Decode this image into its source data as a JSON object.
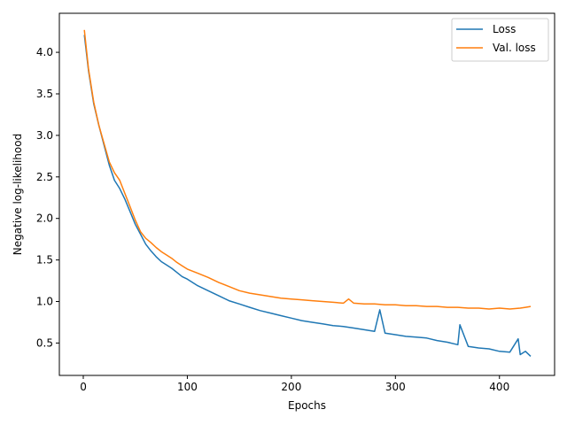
{
  "chart_data": {
    "type": "line",
    "title": "",
    "xlabel": "Epochs",
    "ylabel": "Negative log-likelihood",
    "xlim": [
      -23,
      453
    ],
    "ylim": [
      0.11,
      4.47
    ],
    "xticks": [
      0,
      100,
      200,
      300,
      400
    ],
    "xtick_labels": [
      "0",
      "100",
      "200",
      "300",
      "400"
    ],
    "yticks": [
      0.5,
      1.0,
      1.5,
      2.0,
      2.5,
      3.0,
      3.5,
      4.0
    ],
    "ytick_labels": [
      "0.5",
      "1.0",
      "1.5",
      "2.0",
      "2.5",
      "3.0",
      "3.5",
      "4.0"
    ],
    "grid": false,
    "legend_position": "top-right",
    "series": [
      {
        "name": "Loss",
        "color": "#1f77b4",
        "x": [
          1,
          5,
          10,
          15,
          20,
          25,
          30,
          35,
          40,
          45,
          50,
          55,
          60,
          65,
          70,
          75,
          80,
          85,
          90,
          95,
          100,
          110,
          120,
          130,
          140,
          150,
          160,
          170,
          180,
          190,
          200,
          210,
          220,
          230,
          240,
          250,
          260,
          270,
          280,
          285,
          290,
          300,
          310,
          320,
          330,
          340,
          350,
          360,
          362,
          370,
          380,
          390,
          400,
          410,
          418,
          420,
          425,
          430
        ],
        "values": [
          4.21,
          3.78,
          3.38,
          3.12,
          2.88,
          2.64,
          2.46,
          2.36,
          2.23,
          2.08,
          1.93,
          1.81,
          1.69,
          1.61,
          1.54,
          1.48,
          1.44,
          1.4,
          1.35,
          1.3,
          1.27,
          1.19,
          1.13,
          1.07,
          1.01,
          0.97,
          0.93,
          0.89,
          0.86,
          0.83,
          0.8,
          0.77,
          0.75,
          0.73,
          0.71,
          0.7,
          0.68,
          0.66,
          0.64,
          0.9,
          0.62,
          0.6,
          0.58,
          0.57,
          0.56,
          0.53,
          0.51,
          0.48,
          0.72,
          0.46,
          0.44,
          0.43,
          0.4,
          0.39,
          0.55,
          0.36,
          0.4,
          0.34
        ]
      },
      {
        "name": "Val. loss",
        "color": "#ff7f0e",
        "x": [
          1,
          5,
          10,
          15,
          20,
          25,
          30,
          35,
          40,
          45,
          50,
          55,
          60,
          65,
          70,
          75,
          80,
          85,
          90,
          95,
          100,
          110,
          120,
          130,
          140,
          150,
          160,
          170,
          180,
          190,
          200,
          210,
          220,
          230,
          240,
          250,
          255,
          260,
          270,
          280,
          290,
          300,
          310,
          320,
          330,
          340,
          350,
          360,
          370,
          380,
          390,
          400,
          410,
          420,
          425,
          430
        ],
        "values": [
          4.27,
          3.8,
          3.4,
          3.12,
          2.9,
          2.68,
          2.55,
          2.46,
          2.3,
          2.14,
          1.98,
          1.84,
          1.76,
          1.71,
          1.65,
          1.6,
          1.56,
          1.52,
          1.47,
          1.43,
          1.39,
          1.34,
          1.29,
          1.23,
          1.18,
          1.13,
          1.1,
          1.08,
          1.06,
          1.04,
          1.03,
          1.02,
          1.01,
          1.0,
          0.99,
          0.98,
          1.03,
          0.98,
          0.97,
          0.97,
          0.96,
          0.96,
          0.95,
          0.95,
          0.94,
          0.94,
          0.93,
          0.93,
          0.92,
          0.92,
          0.91,
          0.92,
          0.91,
          0.92,
          0.93,
          0.94
        ]
      }
    ]
  }
}
